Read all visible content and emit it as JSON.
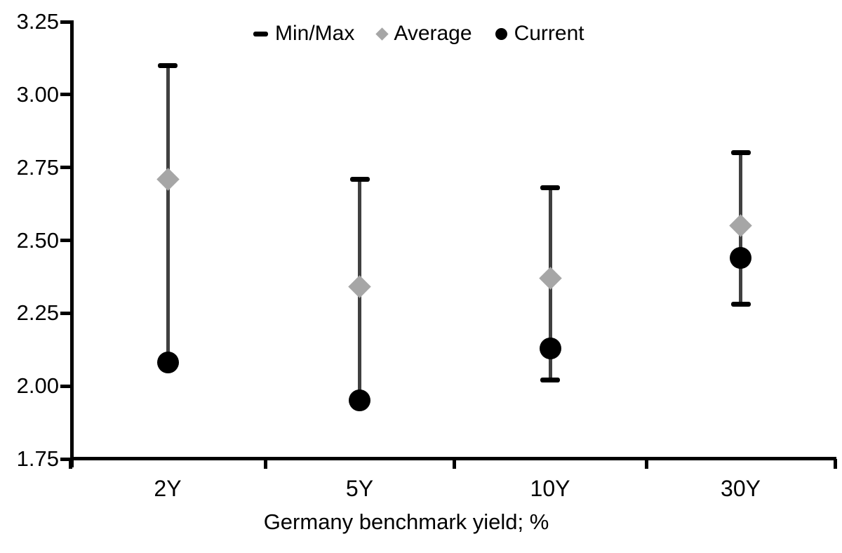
{
  "chart_data": {
    "type": "scatter",
    "subtype": "min-max-range-with-average-and-current-markers",
    "title": "",
    "xlabel": "Germany benchmark yield; %",
    "ylabel": "",
    "categories": [
      "2Y",
      "5Y",
      "10Y",
      "30Y"
    ],
    "series": [
      {
        "name": "Min/Max",
        "role": "range",
        "min": [
          2.08,
          1.95,
          2.02,
          2.28
        ],
        "max": [
          3.1,
          2.71,
          2.68,
          2.8
        ]
      },
      {
        "name": "Average",
        "role": "marker-diamond",
        "values": [
          2.71,
          2.34,
          2.37,
          2.55
        ]
      },
      {
        "name": "Current",
        "role": "marker-circle",
        "values": [
          2.08,
          1.95,
          2.13,
          2.44
        ]
      }
    ],
    "ylim": [
      1.75,
      3.25
    ],
    "ytick_labels": [
      "3.25",
      "3.00",
      "2.75",
      "2.50",
      "2.25",
      "2.00",
      "1.75"
    ],
    "grid": false,
    "legend_position": "top-center"
  },
  "legend": {
    "items": [
      {
        "label": "Min/Max",
        "marker": "dash",
        "color": "#000000"
      },
      {
        "label": "Average",
        "marker": "diamond",
        "color": "#a6a6a6"
      },
      {
        "label": "Current",
        "marker": "circle",
        "color": "#000000"
      }
    ]
  },
  "colors": {
    "whisker": "#404040",
    "cap": "#000000",
    "average_marker": "#a6a6a6",
    "current_marker": "#000000",
    "axis": "#000000",
    "text": "#000000",
    "background": "#ffffff"
  }
}
